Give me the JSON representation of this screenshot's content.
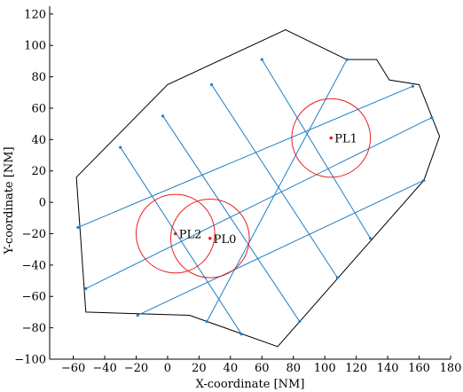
{
  "chart_data": {
    "type": "scatter",
    "title": "",
    "xlabel": "X-coordinate [NM]",
    "ylabel": "Y-coordinate [NM]",
    "xlim": [
      -75,
      180
    ],
    "ylim": [
      -100,
      125
    ],
    "xticks": [
      -60,
      -40,
      -20,
      0,
      20,
      40,
      60,
      80,
      100,
      120,
      140,
      160,
      180
    ],
    "yticks": [
      -100,
      -80,
      -60,
      -40,
      -20,
      0,
      20,
      40,
      60,
      80,
      100,
      120
    ],
    "xtick_labels": [
      "−60",
      "−40",
      "−20",
      "0",
      "20",
      "40",
      "60",
      "80",
      "100",
      "120",
      "140",
      "160",
      "180"
    ],
    "ytick_labels": [
      "−100",
      "−80",
      "−60",
      "−40",
      "−20",
      "0",
      "20",
      "40",
      "60",
      "80",
      "100",
      "120"
    ],
    "grid": false,
    "boundary": [
      [
        -58,
        16
      ],
      [
        -52,
        -70
      ],
      [
        14,
        -72
      ],
      [
        70,
        -92
      ],
      [
        163,
        14
      ],
      [
        173,
        42
      ],
      [
        160,
        75
      ],
      [
        141,
        78
      ],
      [
        133,
        91
      ],
      [
        114,
        91
      ],
      [
        75,
        110
      ],
      [
        0,
        75
      ],
      [
        -58,
        16
      ]
    ],
    "lanes": [
      [
        [
          -57,
          -16
        ],
        [
          156,
          74
        ]
      ],
      [
        [
          -52,
          -55
        ],
        [
          168,
          54
        ]
      ],
      [
        [
          -19,
          -72
        ],
        [
          163,
          14
        ]
      ],
      [
        [
          25,
          -76
        ],
        [
          114,
          91
        ]
      ],
      [
        [
          -30,
          35
        ],
        [
          47,
          -84
        ]
      ],
      [
        [
          -3,
          55
        ],
        [
          84,
          -76
        ]
      ],
      [
        [
          28,
          75
        ],
        [
          108,
          -48
        ]
      ],
      [
        [
          60,
          91
        ],
        [
          129,
          -23
        ]
      ]
    ],
    "waypoints": [
      [
        -57,
        -16
      ],
      [
        156,
        74
      ],
      [
        -52,
        -55
      ],
      [
        168,
        54
      ],
      [
        -19,
        -72
      ],
      [
        163,
        14
      ],
      [
        25,
        -76
      ],
      [
        114,
        91
      ],
      [
        -30,
        35
      ],
      [
        47,
        -84
      ],
      [
        -3,
        55
      ],
      [
        84,
        -76
      ],
      [
        28,
        75
      ],
      [
        108,
        -48
      ],
      [
        60,
        91
      ],
      [
        129,
        -23
      ]
    ],
    "points": [
      {
        "label": "PL0",
        "x": 27,
        "y": -23,
        "radius": 25
      },
      {
        "label": "PL1",
        "x": 104,
        "y": 41,
        "radius": 25
      },
      {
        "label": "PL2",
        "x": 5,
        "y": -20,
        "radius": 25
      }
    ],
    "colors": {
      "boundary": "#000000",
      "lane": "#1f7fc4",
      "circle": "#e8201e",
      "point": "#e8201e"
    }
  }
}
